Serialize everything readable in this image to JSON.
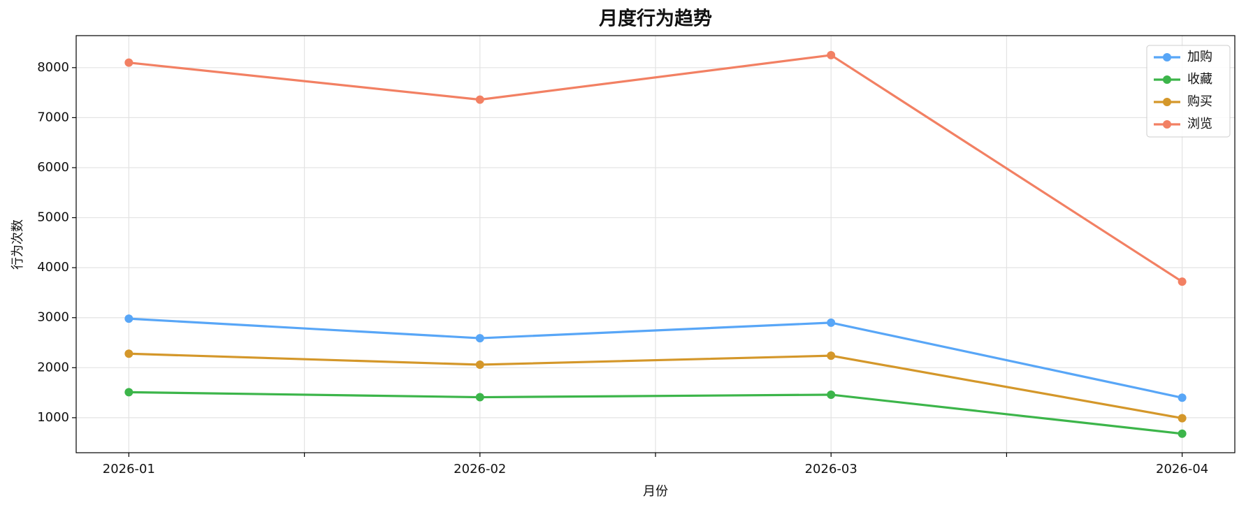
{
  "chart_data": {
    "type": "line",
    "title": "月度行为趋势",
    "x_label": "月份",
    "y_label": "行为次数",
    "categories": [
      "2026-01",
      "2026-02",
      "2026-03",
      "2026-04"
    ],
    "series": [
      {
        "name": "加购",
        "color": "#58a6f7",
        "values": [
          2980,
          2590,
          2900,
          1400
        ]
      },
      {
        "name": "收藏",
        "color": "#3cb54a",
        "values": [
          1510,
          1410,
          1460,
          680
        ]
      },
      {
        "name": "购买",
        "color": "#d4972a",
        "values": [
          2280,
          2060,
          2240,
          990
        ]
      },
      {
        "name": "浏览",
        "color": "#f28063",
        "values": [
          8100,
          7360,
          8250,
          3720
        ]
      }
    ],
    "ylim": [
      300,
      8640
    ],
    "yticks": [
      1000,
      2000,
      3000,
      4000,
      5000,
      6000,
      7000,
      8000
    ],
    "grid": true,
    "legend": "upper right"
  }
}
